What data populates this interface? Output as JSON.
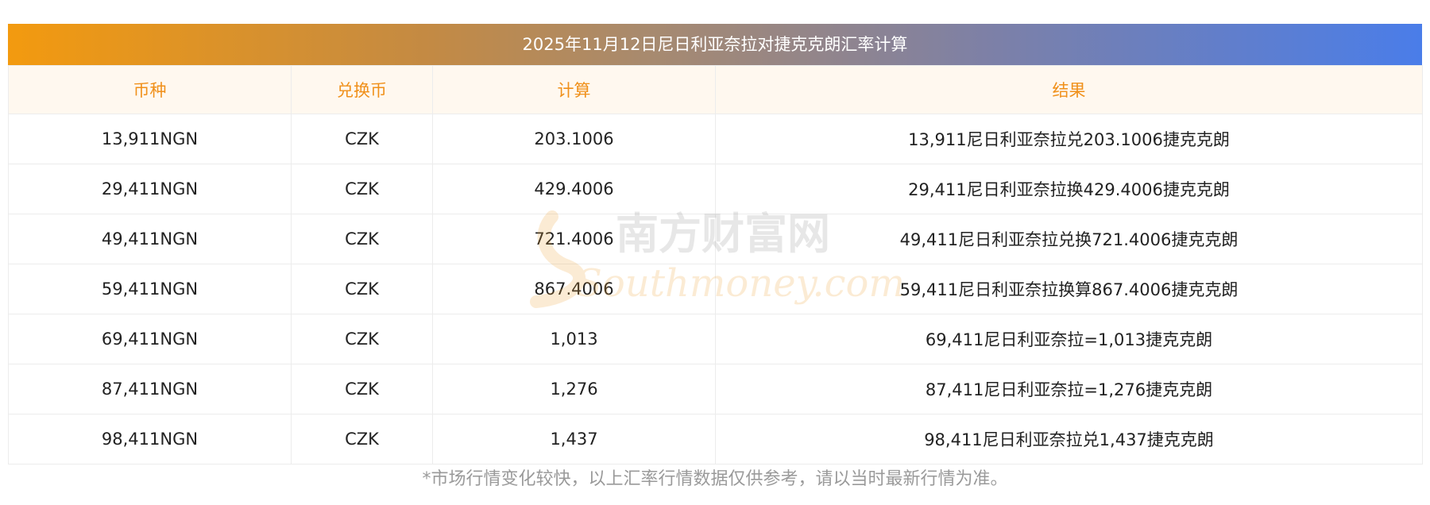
{
  "title": "2025年11月12日尼日利亚奈拉对捷克克朗汇率计算",
  "headers": [
    "币种",
    "兑换币",
    "计算",
    "结果"
  ],
  "rows": [
    [
      "13,911NGN",
      "CZK",
      "203.1006",
      "13,911尼日利亚奈拉兑203.1006捷克克朗"
    ],
    [
      "29,411NGN",
      "CZK",
      "429.4006",
      "29,411尼日利亚奈拉换429.4006捷克克朗"
    ],
    [
      "49,411NGN",
      "CZK",
      "721.4006",
      "49,411尼日利亚奈拉兑换721.4006捷克克朗"
    ],
    [
      "59,411NGN",
      "CZK",
      "867.4006",
      "59,411尼日利亚奈拉换算867.4006捷克克朗"
    ],
    [
      "69,411NGN",
      "CZK",
      "1,013",
      "69,411尼日利亚奈拉=1,013捷克克朗"
    ],
    [
      "87,411NGN",
      "CZK",
      "1,276",
      "87,411尼日利亚奈拉=1,276捷克克朗"
    ],
    [
      "98,411NGN",
      "CZK",
      "1,437",
      "98,411尼日利亚奈拉兑1,437捷克克朗"
    ]
  ],
  "watermark": {
    "cn": "南方财富网",
    "en": "Southmoney.com"
  },
  "footnote": "*市场行情变化较快，以上汇率行情数据仅供参考，请以当时最新行情为准。",
  "colors": {
    "header_text": "#f0901a",
    "gradient_start": "#f39a0f",
    "gradient_end": "#4a7de9"
  }
}
